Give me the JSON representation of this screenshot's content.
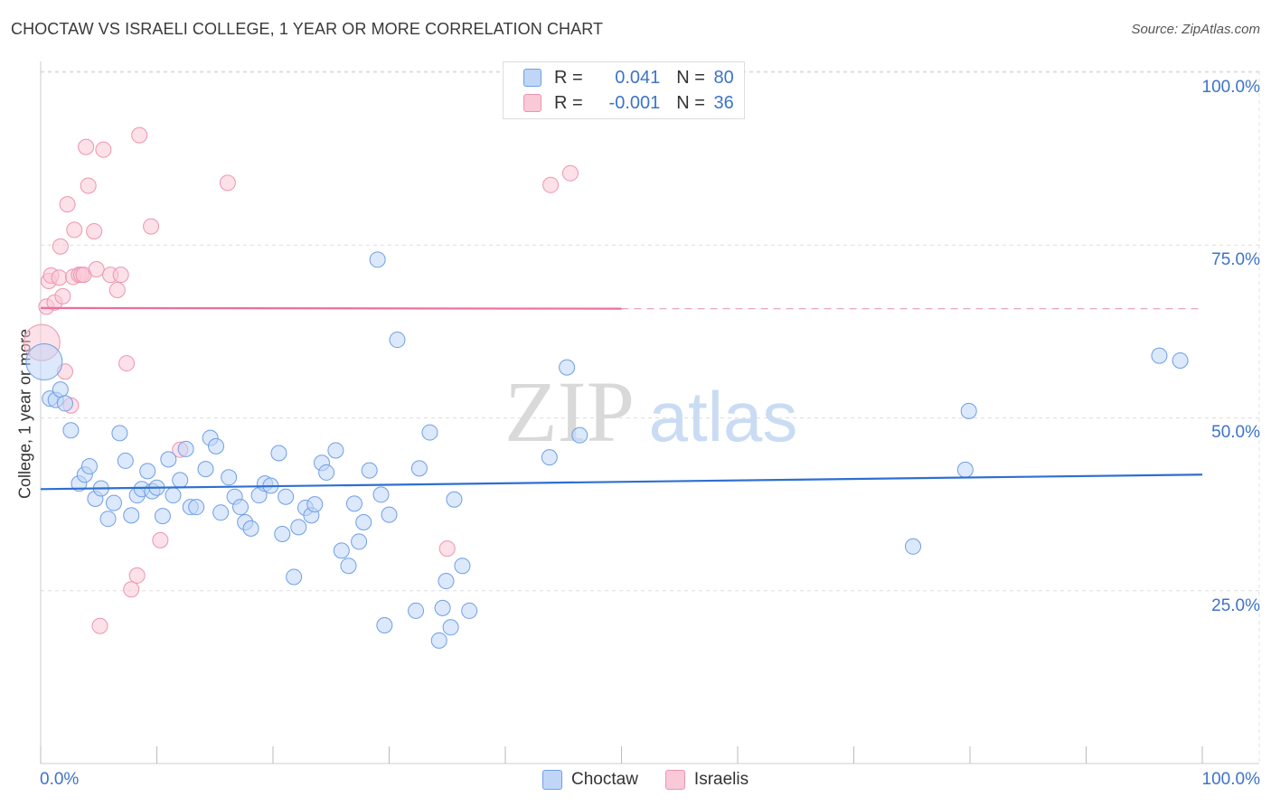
{
  "title": "CHOCTAW VS ISRAELI COLLEGE, 1 YEAR OR MORE CORRELATION CHART",
  "source": "Source: ZipAtlas.com",
  "watermark": {
    "zip": "ZIP",
    "atlas": "atlas"
  },
  "legend": {
    "rows": [
      {
        "r_label": "R = ",
        "r_value": " 0.041",
        "n_label": "N = ",
        "n_value": "80"
      },
      {
        "r_label": "R = ",
        "r_value": "-0.001",
        "n_label": "N = ",
        "n_value": "36"
      }
    ]
  },
  "bottom_legend": {
    "series1": "Choctaw",
    "series2": "Israelis"
  },
  "colors": {
    "choctaw_fill": "#c0d6f7",
    "choctaw_stroke": "#6e9fe6",
    "choctaw_line": "#2e6fd1",
    "israeli_fill": "#f9c9d7",
    "israeli_stroke": "#ee94b0",
    "israeli_line": "#ec6f99",
    "axis_text": "#3e73c8"
  },
  "chart_data": {
    "type": "scatter",
    "title": "CHOCTAW VS ISRAELI COLLEGE, 1 YEAR OR MORE CORRELATION CHART",
    "xlabel": "",
    "ylabel": "College, 1 year or more",
    "xlim": [
      0,
      100
    ],
    "ylim": [
      0,
      100
    ],
    "x_tick_labels": {
      "left": "0.0%",
      "right": "100.0%"
    },
    "y_tick_labels": [
      {
        "value": 100,
        "label": "100.0%"
      },
      {
        "value": 75,
        "label": "75.0%"
      },
      {
        "value": 50,
        "label": "50.0%"
      },
      {
        "value": 25,
        "label": "25.0%"
      }
    ],
    "grid": true,
    "series": [
      {
        "name": "Choctaw",
        "r": 0.041,
        "n": 80,
        "trend": {
          "y_at_0": 39.7,
          "y_at_100": 41.8
        },
        "points": [
          [
            0.3,
            58.1
          ],
          [
            0.8,
            52.8
          ],
          [
            1.3,
            52.6
          ],
          [
            1.7,
            54.1
          ],
          [
            2.1,
            52.1
          ],
          [
            2.6,
            48.2
          ],
          [
            3.3,
            40.5
          ],
          [
            3.8,
            41.8
          ],
          [
            4.2,
            43.0
          ],
          [
            4.7,
            38.3
          ],
          [
            5.2,
            39.8
          ],
          [
            5.8,
            35.4
          ],
          [
            6.3,
            37.7
          ],
          [
            6.8,
            47.8
          ],
          [
            7.3,
            43.8
          ],
          [
            7.8,
            35.9
          ],
          [
            8.3,
            38.8
          ],
          [
            8.7,
            39.7
          ],
          [
            9.2,
            42.3
          ],
          [
            9.6,
            39.4
          ],
          [
            10.0,
            39.9
          ],
          [
            10.5,
            35.8
          ],
          [
            11.0,
            44.0
          ],
          [
            11.4,
            38.8
          ],
          [
            12.0,
            41.0
          ],
          [
            12.5,
            45.5
          ],
          [
            12.9,
            37.1
          ],
          [
            13.4,
            37.1
          ],
          [
            14.2,
            42.6
          ],
          [
            14.6,
            47.1
          ],
          [
            15.1,
            45.9
          ],
          [
            15.5,
            36.3
          ],
          [
            16.2,
            41.4
          ],
          [
            16.7,
            38.6
          ],
          [
            17.2,
            37.1
          ],
          [
            17.6,
            34.9
          ],
          [
            18.1,
            34.0
          ],
          [
            18.8,
            38.8
          ],
          [
            19.3,
            40.5
          ],
          [
            19.8,
            40.2
          ],
          [
            20.5,
            44.9
          ],
          [
            20.8,
            33.2
          ],
          [
            21.1,
            38.6
          ],
          [
            21.8,
            27.0
          ],
          [
            22.2,
            34.2
          ],
          [
            22.8,
            37.0
          ],
          [
            23.3,
            35.9
          ],
          [
            23.6,
            37.5
          ],
          [
            24.2,
            43.5
          ],
          [
            24.6,
            42.1
          ],
          [
            25.4,
            45.3
          ],
          [
            25.9,
            30.8
          ],
          [
            26.5,
            28.6
          ],
          [
            27.0,
            37.6
          ],
          [
            27.4,
            32.1
          ],
          [
            27.8,
            34.9
          ],
          [
            28.3,
            42.4
          ],
          [
            29.0,
            72.9
          ],
          [
            29.3,
            38.9
          ],
          [
            29.6,
            20.0
          ],
          [
            30.0,
            36.0
          ],
          [
            30.7,
            61.3
          ],
          [
            32.3,
            22.1
          ],
          [
            32.6,
            42.7
          ],
          [
            33.5,
            47.9
          ],
          [
            34.3,
            17.8
          ],
          [
            34.6,
            22.5
          ],
          [
            34.9,
            26.4
          ],
          [
            35.3,
            19.7
          ],
          [
            35.6,
            38.2
          ],
          [
            36.3,
            28.6
          ],
          [
            36.9,
            22.1
          ],
          [
            43.8,
            44.3
          ],
          [
            45.3,
            57.3
          ],
          [
            46.4,
            47.5
          ],
          [
            75.1,
            31.4
          ],
          [
            79.6,
            42.5
          ],
          [
            79.9,
            51.0
          ],
          [
            96.3,
            59.0
          ],
          [
            98.1,
            58.3
          ]
        ]
      },
      {
        "name": "Israelis",
        "r": -0.001,
        "n": 36,
        "trend": {
          "y_at_0": 65.9,
          "y_at_50": 65.8,
          "dashed_to_100": 65.8
        },
        "points": [
          [
            0.1,
            60.9
          ],
          [
            0.5,
            66.1
          ],
          [
            0.7,
            69.8
          ],
          [
            0.9,
            70.6
          ],
          [
            1.2,
            66.7
          ],
          [
            1.6,
            70.3
          ],
          [
            1.7,
            74.8
          ],
          [
            1.9,
            67.6
          ],
          [
            2.1,
            56.7
          ],
          [
            2.3,
            80.9
          ],
          [
            2.6,
            51.8
          ],
          [
            2.8,
            70.4
          ],
          [
            2.9,
            77.2
          ],
          [
            3.3,
            70.7
          ],
          [
            3.5,
            70.7
          ],
          [
            3.7,
            70.7
          ],
          [
            3.9,
            89.2
          ],
          [
            4.1,
            83.6
          ],
          [
            4.6,
            77.0
          ],
          [
            4.8,
            71.5
          ],
          [
            5.1,
            19.9
          ],
          [
            5.4,
            88.8
          ],
          [
            6.0,
            70.7
          ],
          [
            6.6,
            68.5
          ],
          [
            6.9,
            70.7
          ],
          [
            7.4,
            57.9
          ],
          [
            7.8,
            25.2
          ],
          [
            8.3,
            27.2
          ],
          [
            8.5,
            90.9
          ],
          [
            9.5,
            77.7
          ],
          [
            10.3,
            32.3
          ],
          [
            12.0,
            45.4
          ],
          [
            16.1,
            84.0
          ],
          [
            35.0,
            31.1
          ],
          [
            43.9,
            83.7
          ],
          [
            45.6,
            85.4
          ]
        ]
      }
    ]
  }
}
